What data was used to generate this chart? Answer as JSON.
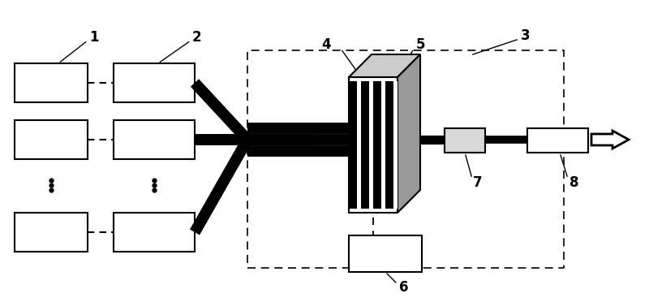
{
  "bg_color": "#ffffff",
  "box_color": "#ffffff",
  "box_edge": "#000000",
  "black": "#000000",
  "gray_med": "#aaaaaa",
  "gray_dark": "#888888",
  "label_1": "1",
  "label_2": "2",
  "label_3": "3",
  "label_4": "4",
  "label_5": "5",
  "label_6": "6",
  "label_7": "7",
  "label_8": "8",
  "fontsize": 12
}
